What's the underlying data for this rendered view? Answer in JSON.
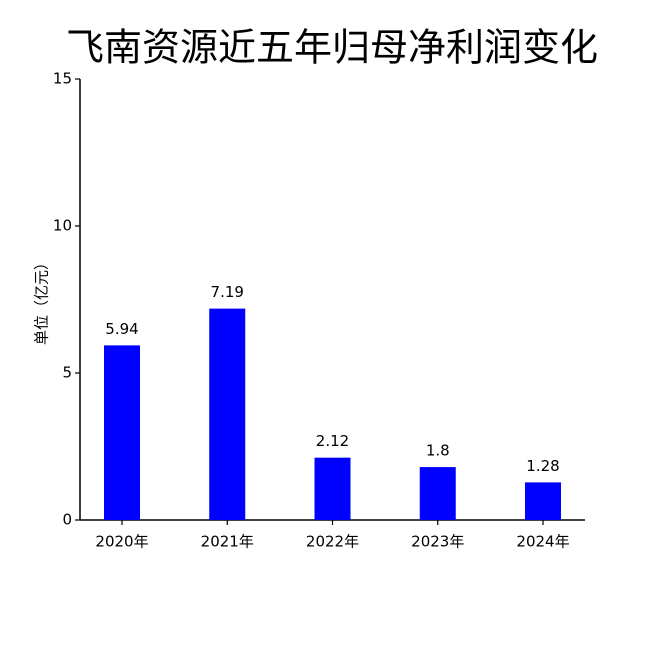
{
  "chart_data": {
    "type": "bar",
    "title": "飞南资源近五年归母净利润变化",
    "y_label": "单位（亿元）",
    "categories": [
      "2020年",
      "2021年",
      "2022年",
      "2023年",
      "2024年"
    ],
    "values": [
      5.94,
      7.19,
      2.12,
      1.8,
      1.28
    ],
    "color": "#0000ff",
    "ylim": [
      0,
      15
    ],
    "yticks": [
      0,
      5,
      10,
      15
    ]
  }
}
